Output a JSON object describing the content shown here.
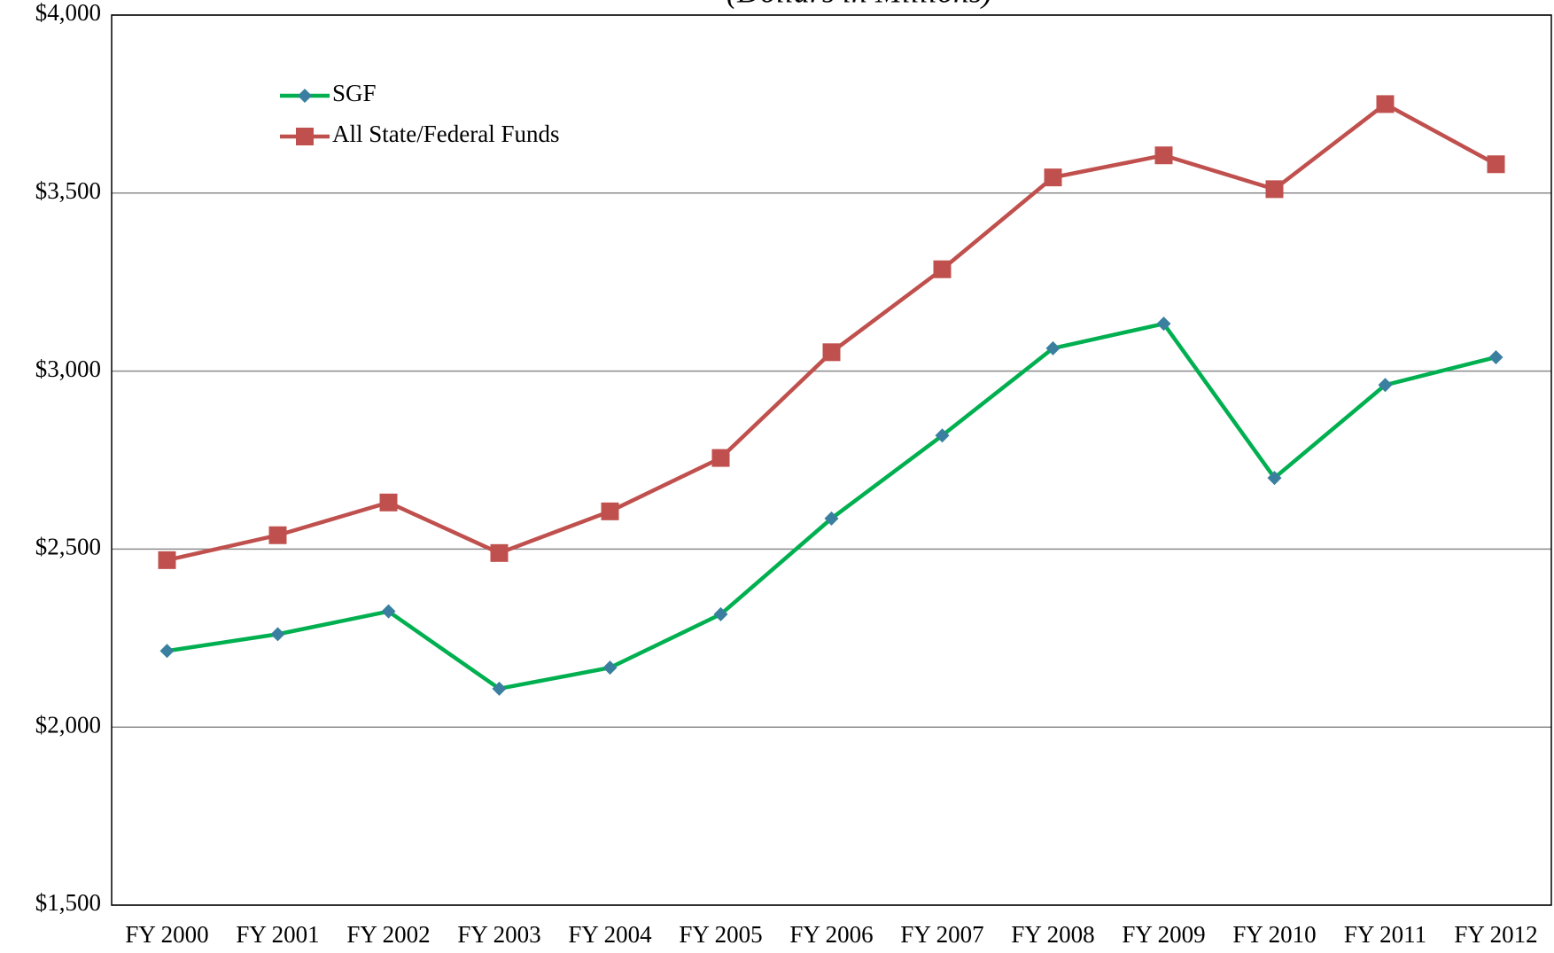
{
  "chart_data": {
    "type": "line",
    "subtitle": "(Dollars in Millions)",
    "categories": [
      "FY 2000",
      "FY 2001",
      "FY 2002",
      "FY 2003",
      "FY 2004",
      "FY 2005",
      "FY 2006",
      "FY 2007",
      "FY 2008",
      "FY 2009",
      "FY 2010",
      "FY 2011",
      "FY 2012"
    ],
    "series": [
      {
        "name": "SGF",
        "color": "#00b050",
        "marker": "diamond",
        "marker_color": "#3a7fa0",
        "values": [
          2214,
          2261,
          2325,
          2108,
          2167,
          2317,
          2586,
          2819,
          3064,
          3133,
          2700,
          2961,
          3039
        ]
      },
      {
        "name": "All State/Federal Funds",
        "color": "#c0504d",
        "marker": "square",
        "marker_color": "#c0504d",
        "values": [
          2469,
          2539,
          2631,
          2489,
          2606,
          2756,
          3053,
          3286,
          3544,
          3606,
          3511,
          3750,
          3581
        ]
      }
    ],
    "ylim": [
      1500,
      4000
    ],
    "yticks": [
      {
        "value": 1500,
        "label": "$1,500"
      },
      {
        "value": 2000,
        "label": "$2,000"
      },
      {
        "value": 2500,
        "label": "$2,500"
      },
      {
        "value": 3000,
        "label": "$3,000"
      },
      {
        "value": 3500,
        "label": "$3,500"
      },
      {
        "value": 4000,
        "label": "$4,000"
      }
    ],
    "grid": true,
    "legend": "upper-left"
  }
}
